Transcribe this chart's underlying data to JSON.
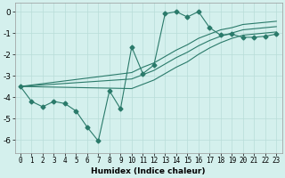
{
  "xlabel": "Humidex (Indice chaleur)",
  "background_color": "#d4f0ed",
  "grid_color": "#b8ddd8",
  "line_color": "#2a7a6a",
  "xlim": [
    -0.5,
    23.5
  ],
  "ylim": [
    -6.6,
    0.4
  ],
  "yticks": [
    0,
    -1,
    -2,
    -3,
    -4,
    -5,
    -6
  ],
  "xticks": [
    0,
    1,
    2,
    3,
    4,
    5,
    6,
    7,
    8,
    9,
    10,
    11,
    12,
    13,
    14,
    15,
    16,
    17,
    18,
    19,
    20,
    21,
    22,
    23
  ],
  "line1_x": [
    0,
    1,
    2,
    3,
    4,
    5,
    6,
    7,
    8,
    9,
    10,
    11,
    12,
    13,
    14,
    15,
    16,
    17,
    18,
    19,
    20,
    21,
    22,
    23
  ],
  "line1_y": [
    -3.5,
    -4.2,
    -4.45,
    -4.2,
    -4.3,
    -4.65,
    -5.4,
    -6.05,
    -3.7,
    -4.55,
    -1.65,
    -2.9,
    -2.5,
    -0.1,
    0.0,
    -0.25,
    0.0,
    -0.75,
    -1.1,
    -1.05,
    -1.2,
    -1.2,
    -1.15,
    -1.05
  ],
  "line2_x": [
    0,
    10,
    11,
    12,
    13,
    14,
    15,
    16,
    17,
    18,
    19,
    20,
    21,
    22,
    23
  ],
  "line2_y": [
    -3.5,
    -2.85,
    -2.6,
    -2.4,
    -2.1,
    -1.8,
    -1.55,
    -1.25,
    -1.05,
    -0.85,
    -0.75,
    -0.6,
    -0.55,
    -0.5,
    -0.45
  ],
  "line3_x": [
    0,
    10,
    11,
    12,
    13,
    14,
    15,
    16,
    17,
    18,
    19,
    20,
    21,
    22,
    23
  ],
  "line3_y": [
    -3.5,
    -3.15,
    -2.95,
    -2.75,
    -2.45,
    -2.15,
    -1.9,
    -1.6,
    -1.35,
    -1.15,
    -1.0,
    -0.85,
    -0.8,
    -0.75,
    -0.7
  ],
  "line4_x": [
    0,
    10,
    11,
    12,
    13,
    14,
    15,
    16,
    17,
    18,
    19,
    20,
    21,
    22,
    23
  ],
  "line4_y": [
    -3.5,
    -3.6,
    -3.4,
    -3.2,
    -2.9,
    -2.6,
    -2.35,
    -2.0,
    -1.7,
    -1.45,
    -1.25,
    -1.1,
    -1.05,
    -1.0,
    -0.95
  ]
}
